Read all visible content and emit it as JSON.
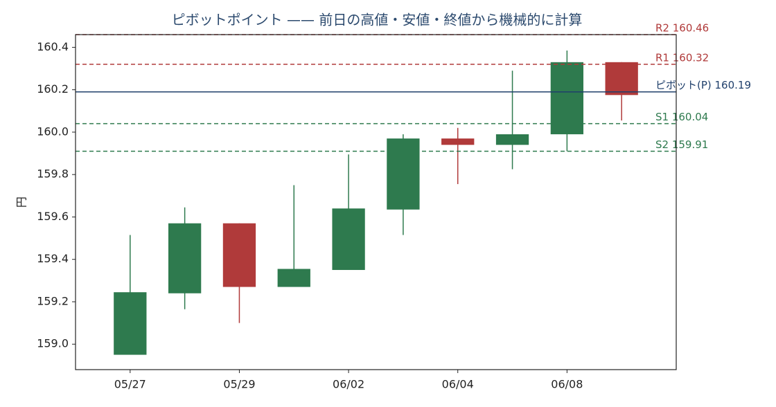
{
  "chart_data": {
    "type": "candlestick",
    "title": "ピボットポイント —— 前日の高値・安値・終値から機械的に計算",
    "y_label": "円",
    "categories": [
      "05/27",
      null,
      "05/29",
      null,
      "06/02",
      null,
      "06/04",
      null,
      "06/08",
      null
    ],
    "open": [
      158.95,
      159.24,
      159.57,
      159.27,
      159.35,
      159.635,
      159.97,
      159.94,
      159.99,
      160.33
    ],
    "high": [
      159.515,
      159.645,
      159.57,
      159.75,
      159.895,
      159.99,
      160.02,
      160.29,
      160.385,
      160.33
    ],
    "low": [
      158.95,
      159.165,
      159.1,
      159.27,
      159.35,
      159.515,
      159.755,
      159.825,
      159.91,
      160.055
    ],
    "close": [
      159.245,
      159.57,
      159.27,
      159.355,
      159.64,
      159.97,
      159.94,
      159.99,
      160.33,
      160.175
    ],
    "up_color": "#2e7a4e",
    "down_color": "#b03a3a",
    "ylim": [
      158.88,
      160.46
    ],
    "yticks": [
      {
        "value": 159.0,
        "label": "159.0"
      },
      159.2,
      159.4,
      159.6,
      159.8,
      {
        "value": 160.0,
        "label": "160.0"
      },
      160.2,
      160.4
    ],
    "levels": [
      {
        "label": "R2 160.46",
        "value": 160.46,
        "color": "#b03a3a",
        "dashed": true
      },
      {
        "label": "R1 160.32",
        "value": 160.32,
        "color": "#b03a3a",
        "dashed": true
      },
      {
        "label": "ピボット(P) 160.19",
        "value": 160.19,
        "color": "#1f3f6b",
        "dashed": false
      },
      {
        "label": "S1 160.04",
        "value": 160.04,
        "color": "#2e7a4e",
        "dashed": true
      },
      {
        "label": "S2 159.91",
        "value": 159.91,
        "color": "#2e7a4e",
        "dashed": true
      }
    ]
  }
}
